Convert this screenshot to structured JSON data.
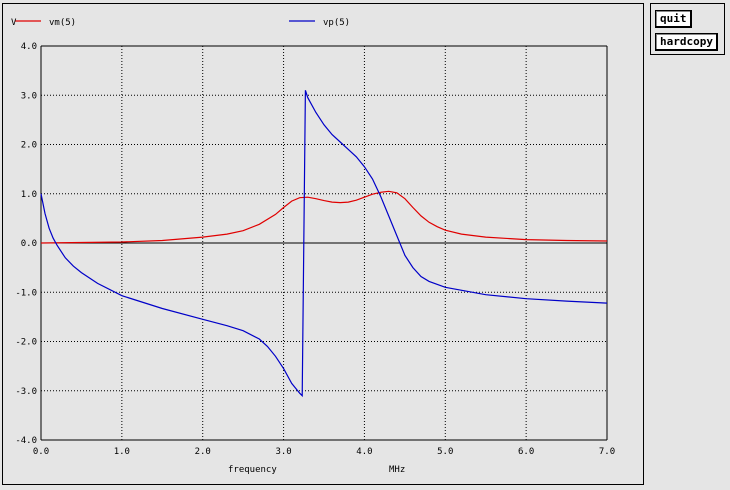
{
  "buttons": {
    "quit": "quit",
    "hardcopy": "hardcopy"
  },
  "chart_data": {
    "type": "line",
    "ylabel": "V",
    "xlabel": "frequency",
    "xunit": "MHz",
    "xlim": [
      0,
      7
    ],
    "ylim": [
      -4,
      4
    ],
    "xticks": [
      "0.0",
      "1.0",
      "2.0",
      "3.0",
      "4.0",
      "5.0",
      "6.0",
      "7.0"
    ],
    "yticks": [
      "4.0",
      "3.0",
      "2.0",
      "1.0",
      "0.0",
      "-1.0",
      "-2.0",
      "-3.0",
      "-4.0"
    ],
    "grid": true,
    "legend_placement": "top",
    "series": [
      {
        "name": "vm(5)",
        "color": "#e00000",
        "x": [
          0,
          0.5,
          1.0,
          1.5,
          2.0,
          2.3,
          2.5,
          2.7,
          2.9,
          3.0,
          3.1,
          3.2,
          3.3,
          3.4,
          3.5,
          3.6,
          3.7,
          3.8,
          3.9,
          4.0,
          4.1,
          4.2,
          4.3,
          4.4,
          4.5,
          4.6,
          4.7,
          4.8,
          4.9,
          5.0,
          5.2,
          5.5,
          6.0,
          6.5,
          7.0
        ],
        "values": [
          0,
          0.01,
          0.02,
          0.05,
          0.12,
          0.18,
          0.25,
          0.38,
          0.58,
          0.72,
          0.85,
          0.92,
          0.93,
          0.9,
          0.86,
          0.83,
          0.82,
          0.83,
          0.87,
          0.93,
          0.99,
          1.03,
          1.05,
          1.02,
          0.9,
          0.72,
          0.55,
          0.42,
          0.33,
          0.26,
          0.18,
          0.12,
          0.07,
          0.05,
          0.04
        ]
      },
      {
        "name": "vp(5)",
        "color": "#0000c8",
        "x": [
          0,
          0.05,
          0.1,
          0.15,
          0.2,
          0.3,
          0.4,
          0.5,
          0.7,
          1.0,
          1.5,
          2.0,
          2.3,
          2.5,
          2.7,
          2.8,
          2.9,
          3.0,
          3.1,
          3.2,
          3.23,
          3.27,
          3.3,
          3.4,
          3.5,
          3.6,
          3.7,
          3.8,
          3.9,
          4.0,
          4.1,
          4.2,
          4.3,
          4.4,
          4.5,
          4.6,
          4.7,
          4.8,
          5.0,
          5.5,
          6.0,
          6.5,
          7.0
        ],
        "values": [
          1.0,
          0.6,
          0.3,
          0.1,
          -0.05,
          -0.3,
          -0.47,
          -0.6,
          -0.82,
          -1.07,
          -1.33,
          -1.55,
          -1.68,
          -1.78,
          -1.95,
          -2.1,
          -2.3,
          -2.55,
          -2.85,
          -3.05,
          -3.1,
          3.1,
          2.95,
          2.65,
          2.4,
          2.2,
          2.05,
          1.9,
          1.75,
          1.55,
          1.3,
          0.95,
          0.55,
          0.15,
          -0.25,
          -0.5,
          -0.68,
          -0.78,
          -0.9,
          -1.05,
          -1.13,
          -1.18,
          -1.22
        ]
      }
    ]
  }
}
